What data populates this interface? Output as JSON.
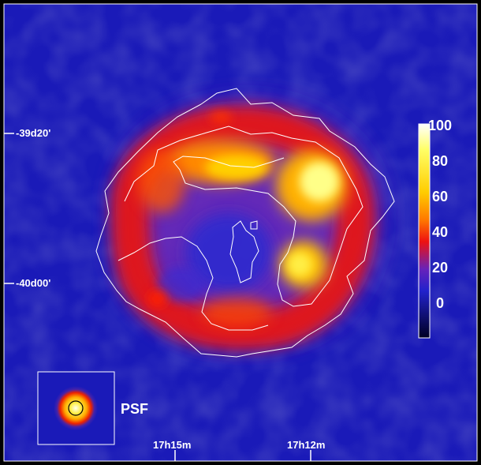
{
  "colorbar": {
    "ticks": [
      {
        "value": 100,
        "label": "100"
      },
      {
        "value": 80,
        "label": "80"
      },
      {
        "value": 60,
        "label": "60"
      },
      {
        "value": 40,
        "label": "40"
      },
      {
        "value": 20,
        "label": "20"
      },
      {
        "value": 0,
        "label": "0"
      }
    ],
    "colors": [
      "#ffffff",
      "#ffff66",
      "#ffcc00",
      "#ff7700",
      "#ee1111",
      "#6622bb",
      "#2222cc",
      "#000022"
    ]
  },
  "dec_labels": [
    "-39d20'",
    "-40d00'"
  ],
  "ra_labels": [
    "17h15m",
    "17h12m"
  ],
  "psf": {
    "label": "PSF"
  },
  "colors": {
    "background": "#1a1ab8",
    "contour": "#ffffff",
    "border": "#ffffff"
  }
}
